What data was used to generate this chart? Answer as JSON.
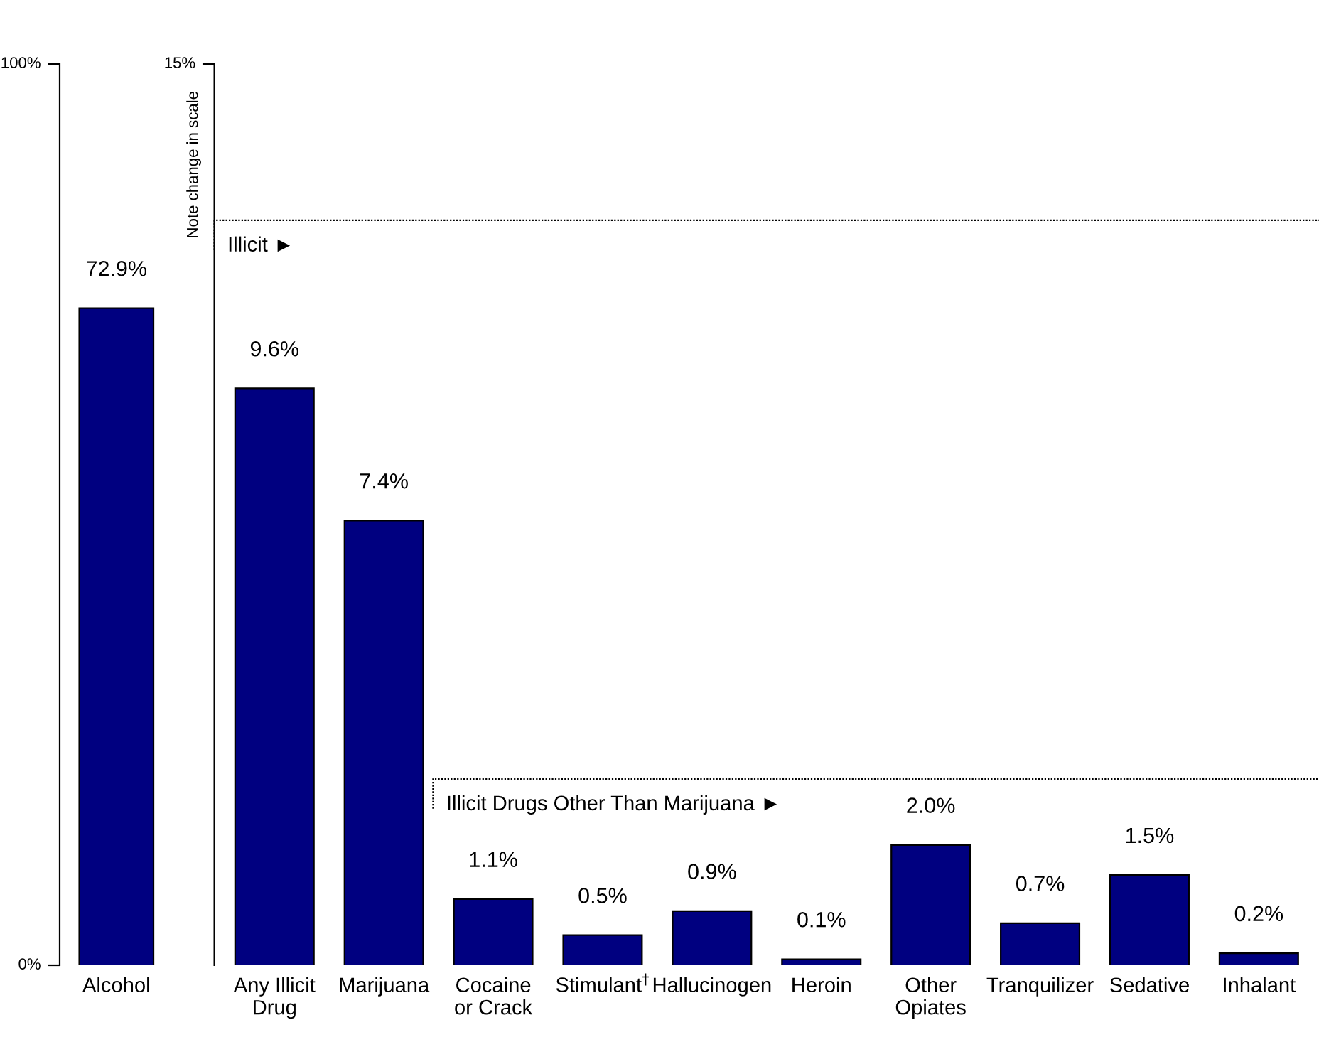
{
  "chart_data": [
    {
      "type": "bar",
      "categories": [
        "Alcohol"
      ],
      "values": [
        72.9
      ],
      "color": "#000080",
      "ylim": [
        0,
        100
      ],
      "yticks": [
        {
          "value": 0,
          "label": "0%"
        },
        {
          "value": 100,
          "label": "100%"
        }
      ],
      "value_labels": [
        "72.9%"
      ],
      "grid": false
    },
    {
      "type": "bar",
      "categories": [
        "Any Illicit Drug",
        "Marijuana",
        "Cocaine or Crack",
        "Stimulant$^{†}$",
        "Hallucinogen",
        "Heroin",
        "Other Opiates",
        "Tranquilizer",
        "Sedative",
        "Inhalant"
      ],
      "values": [
        9.6,
        7.4,
        1.1,
        0.5,
        0.9,
        0.1,
        2.0,
        0.7,
        1.5,
        0.2
      ],
      "color": "#000080",
      "ylim": [
        0,
        15
      ],
      "yticks": [
        {
          "value": 15,
          "label": "15%"
        }
      ],
      "ylabel": "Note change in scale",
      "value_labels": [
        "9.6%",
        "7.4%",
        "1.1%",
        "0.5%",
        "0.9%",
        "0.1%",
        "2.0%",
        "0.7%",
        "1.5%",
        "0.2%"
      ],
      "grid": false,
      "ref_lines": [
        {
          "axis": "y",
          "value": 12.4,
          "label": "Illicit ►",
          "line_style": "dotted"
        },
        {
          "axis": "y",
          "value": 3.1,
          "label": "Illicit Drugs Other Than Marijuana ►",
          "line_style": "dotted"
        }
      ]
    }
  ]
}
